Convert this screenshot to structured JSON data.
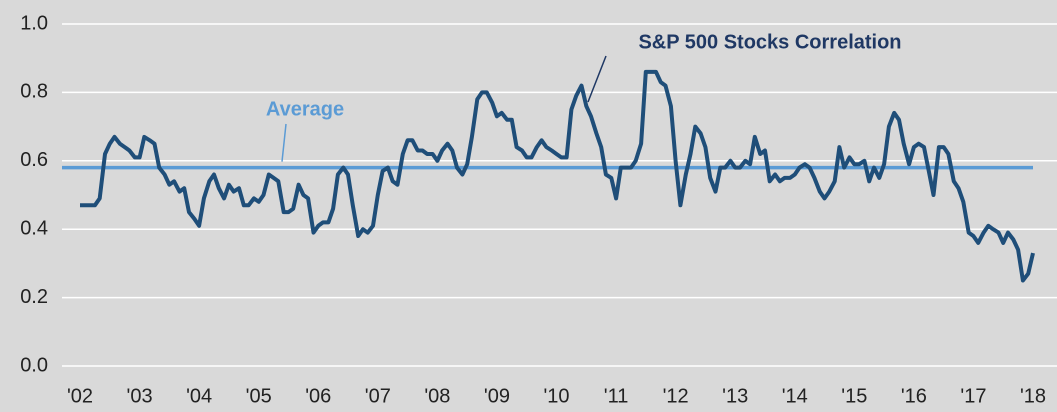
{
  "chart_data": {
    "type": "line",
    "xlim": [
      2002,
      2018
    ],
    "ylim": [
      0,
      1
    ],
    "xticks": [
      {
        "value": 2002,
        "label": "'02"
      },
      {
        "value": 2003,
        "label": "'03"
      },
      {
        "value": 2004,
        "label": "'04"
      },
      {
        "value": 2005,
        "label": "'05"
      },
      {
        "value": 2006,
        "label": "'06"
      },
      {
        "value": 2007,
        "label": "'07"
      },
      {
        "value": 2008,
        "label": "'08"
      },
      {
        "value": 2009,
        "label": "'09"
      },
      {
        "value": 2010,
        "label": "'10"
      },
      {
        "value": 2011,
        "label": "'11"
      },
      {
        "value": 2012,
        "label": "'12"
      },
      {
        "value": 2013,
        "label": "'13"
      },
      {
        "value": 2014,
        "label": "'14"
      },
      {
        "value": 2015,
        "label": "'15"
      },
      {
        "value": 2016,
        "label": "'16"
      },
      {
        "value": 2017,
        "label": "'17"
      },
      {
        "value": 2018,
        "label": "'18"
      }
    ],
    "yticks": [
      {
        "value": 0,
        "label": "0.0"
      },
      0.2,
      0.4,
      0.6,
      0.8,
      {
        "value": 1,
        "label": "1.0"
      }
    ],
    "grid": true,
    "average": {
      "label": "Average",
      "value": 0.58,
      "color": "#5b9bd5"
    },
    "x": [
      2002,
      2002.08,
      2002.17,
      2002.25,
      2002.33,
      2002.42,
      2002.5,
      2002.58,
      2002.67,
      2002.75,
      2002.83,
      2002.92,
      2003,
      2003.08,
      2003.17,
      2003.25,
      2003.33,
      2003.42,
      2003.5,
      2003.58,
      2003.67,
      2003.75,
      2003.83,
      2003.92,
      2004,
      2004.08,
      2004.17,
      2004.25,
      2004.33,
      2004.42,
      2004.5,
      2004.58,
      2004.67,
      2004.75,
      2004.83,
      2004.92,
      2005,
      2005.08,
      2005.17,
      2005.25,
      2005.33,
      2005.42,
      2005.5,
      2005.58,
      2005.67,
      2005.75,
      2005.83,
      2005.92,
      2006,
      2006.08,
      2006.17,
      2006.25,
      2006.33,
      2006.42,
      2006.5,
      2006.58,
      2006.67,
      2006.75,
      2006.83,
      2006.92,
      2007,
      2007.08,
      2007.17,
      2007.25,
      2007.33,
      2007.42,
      2007.5,
      2007.58,
      2007.67,
      2007.75,
      2007.83,
      2007.92,
      2008,
      2008.08,
      2008.17,
      2008.25,
      2008.33,
      2008.42,
      2008.5,
      2008.58,
      2008.67,
      2008.75,
      2008.83,
      2008.92,
      2009,
      2009.08,
      2009.17,
      2009.25,
      2009.33,
      2009.42,
      2009.5,
      2009.58,
      2009.67,
      2009.75,
      2009.83,
      2009.92,
      2010,
      2010.08,
      2010.17,
      2010.25,
      2010.33,
      2010.42,
      2010.5,
      2010.58,
      2010.67,
      2010.75,
      2010.83,
      2010.92,
      2011,
      2011.08,
      2011.17,
      2011.25,
      2011.33,
      2011.42,
      2011.5,
      2011.58,
      2011.67,
      2011.75,
      2011.83,
      2011.92,
      2012,
      2012.08,
      2012.17,
      2012.25,
      2012.33,
      2012.42,
      2012.5,
      2012.58,
      2012.67,
      2012.75,
      2012.83,
      2012.92,
      2013,
      2013.08,
      2013.17,
      2013.25,
      2013.33,
      2013.42,
      2013.5,
      2013.58,
      2013.67,
      2013.75,
      2013.83,
      2013.92,
      2014,
      2014.08,
      2014.17,
      2014.25,
      2014.33,
      2014.42,
      2014.5,
      2014.58,
      2014.67,
      2014.75,
      2014.83,
      2014.92,
      2015,
      2015.08,
      2015.17,
      2015.25,
      2015.33,
      2015.42,
      2015.5,
      2015.58,
      2015.67,
      2015.75,
      2015.83,
      2015.92,
      2016,
      2016.08,
      2016.17,
      2016.25,
      2016.33,
      2016.42,
      2016.5,
      2016.58,
      2016.67,
      2016.75,
      2016.83,
      2016.92,
      2017,
      2017.08,
      2017.17,
      2017.25,
      2017.33,
      2017.42,
      2017.5,
      2017.58,
      2017.67,
      2017.75,
      2017.83,
      2017.92,
      2018
    ],
    "series": [
      {
        "name": "S&P 500 Stocks Correlation",
        "color": "#1f4e79",
        "values": [
          0.47,
          0.47,
          0.47,
          0.47,
          0.49,
          0.62,
          0.65,
          0.67,
          0.65,
          0.64,
          0.63,
          0.61,
          0.61,
          0.67,
          0.66,
          0.65,
          0.58,
          0.56,
          0.53,
          0.54,
          0.51,
          0.52,
          0.45,
          0.43,
          0.41,
          0.49,
          0.54,
          0.56,
          0.52,
          0.49,
          0.53,
          0.51,
          0.52,
          0.47,
          0.47,
          0.49,
          0.48,
          0.5,
          0.56,
          0.55,
          0.54,
          0.45,
          0.45,
          0.46,
          0.53,
          0.5,
          0.49,
          0.39,
          0.41,
          0.42,
          0.42,
          0.46,
          0.56,
          0.58,
          0.56,
          0.47,
          0.38,
          0.4,
          0.39,
          0.41,
          0.5,
          0.57,
          0.58,
          0.54,
          0.53,
          0.62,
          0.66,
          0.66,
          0.63,
          0.63,
          0.62,
          0.62,
          0.6,
          0.63,
          0.65,
          0.63,
          0.58,
          0.56,
          0.59,
          0.67,
          0.78,
          0.8,
          0.8,
          0.77,
          0.73,
          0.74,
          0.72,
          0.72,
          0.64,
          0.63,
          0.61,
          0.61,
          0.64,
          0.66,
          0.64,
          0.63,
          0.62,
          0.61,
          0.61,
          0.75,
          0.79,
          0.82,
          0.76,
          0.73,
          0.68,
          0.64,
          0.56,
          0.55,
          0.49,
          0.58,
          0.58,
          0.58,
          0.6,
          0.65,
          0.86,
          0.86,
          0.86,
          0.83,
          0.82,
          0.76,
          0.6,
          0.47,
          0.56,
          0.62,
          0.7,
          0.68,
          0.64,
          0.55,
          0.51,
          0.58,
          0.58,
          0.6,
          0.58,
          0.58,
          0.6,
          0.59,
          0.67,
          0.62,
          0.63,
          0.54,
          0.56,
          0.54,
          0.55,
          0.55,
          0.56,
          0.58,
          0.59,
          0.58,
          0.55,
          0.51,
          0.49,
          0.51,
          0.54,
          0.64,
          0.58,
          0.61,
          0.59,
          0.59,
          0.6,
          0.54,
          0.58,
          0.55,
          0.59,
          0.7,
          0.74,
          0.72,
          0.65,
          0.59,
          0.64,
          0.65,
          0.64,
          0.57,
          0.5,
          0.64,
          0.64,
          0.62,
          0.54,
          0.52,
          0.48,
          0.39,
          0.38,
          0.36,
          0.39,
          0.41,
          0.4,
          0.39,
          0.36,
          0.39,
          0.37,
          0.34,
          0.25,
          0.27,
          0.33
        ]
      }
    ]
  }
}
